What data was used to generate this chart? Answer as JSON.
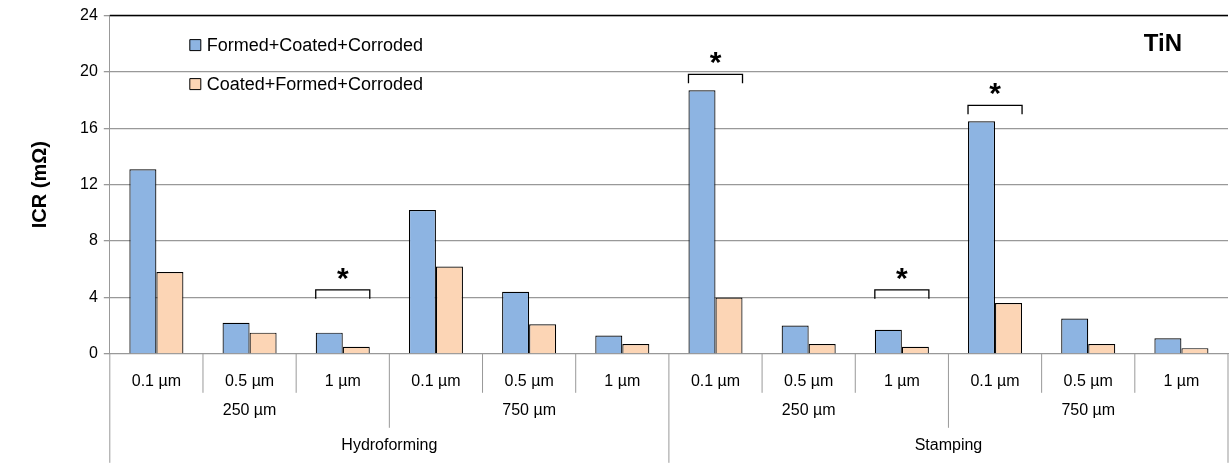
{
  "chart_data": {
    "type": "bar",
    "title": "TiN",
    "ylabel": "ICR (mΩ)",
    "categories": [
      "0.1 µm",
      "0.5 µm",
      "1 µm",
      "0.1 µm",
      "0.5 µm",
      "1 µm",
      "0.1 µm",
      "0.5 µm",
      "1 µm",
      "0.1 µm",
      "0.5 µm",
      "1 µm"
    ],
    "series": [
      {
        "name": "Formed+Coated+Corroded",
        "color": "#8db4e2",
        "values": [
          13.1,
          2.2,
          1.5,
          10.2,
          4.4,
          1.3,
          18.7,
          2.0,
          1.7,
          16.5,
          2.5,
          1.1
        ]
      },
      {
        "name": "Coated+Formed+Corroded",
        "color": "#fcd5b5",
        "values": [
          5.8,
          1.5,
          0.5,
          6.2,
          2.1,
          0.7,
          4.0,
          0.7,
          0.5,
          3.6,
          0.7,
          0.4
        ]
      }
    ],
    "ylim": [
      0,
      24
    ],
    "yticks": [
      0,
      4,
      8,
      12,
      16,
      20,
      24
    ],
    "grid": "y",
    "legend": "top left",
    "annotations": [
      "*",
      "*",
      "*",
      "*",
      "250 µm",
      "750 µm",
      "250 µm",
      "750 µm",
      "Hydroforming",
      "Stamping"
    ]
  }
}
